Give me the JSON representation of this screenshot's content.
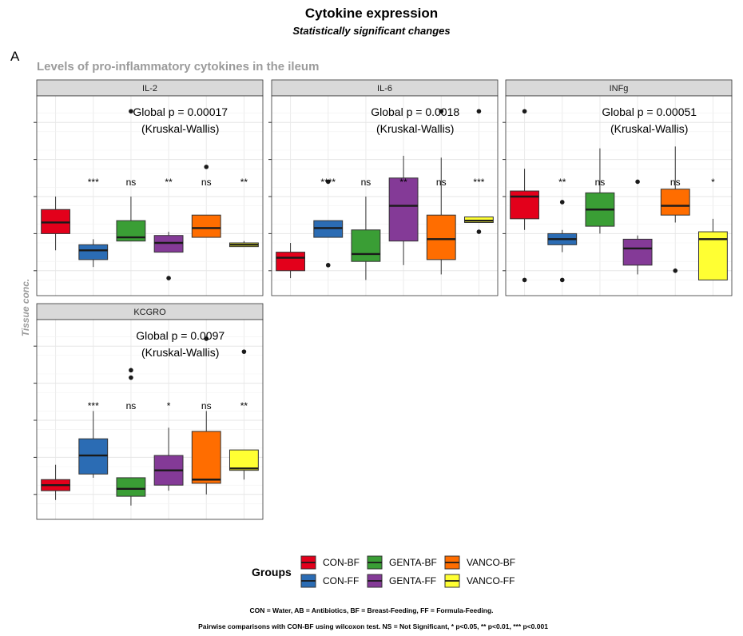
{
  "figure": {
    "title": "Cytokine expression",
    "subtitle": "Statistically significant changes",
    "panel_tag": "A",
    "section_title": "Levels of pro-inflammatory cytokines in the ileum",
    "ylabel": "Tissue conc.",
    "caption_line1": "CON = Water, AB = Antibiotics, BF = Breast-Feeding, FF = Formula-Feeding.",
    "caption_line2": "Pairwise comparisons with CON-BF using wilcoxon test. NS = Not Significant, * p<0.05, ** p<0.01, *** p<0.001"
  },
  "legend": {
    "title": "Groups",
    "placement": "bottom",
    "items": [
      {
        "label": "CON-BF",
        "color": "#e3001b"
      },
      {
        "label": "CON-FF",
        "color": "#2b6cb4"
      },
      {
        "label": "GENTA-BF",
        "color": "#3a9e35"
      },
      {
        "label": "GENTA-FF",
        "color": "#843a97"
      },
      {
        "label": "VANCO-BF",
        "color": "#ff6d00"
      },
      {
        "label": "VANCO-FF",
        "color": "#ffff33"
      }
    ]
  },
  "chart_data": [
    {
      "type": "boxplot",
      "facet": "IL-2",
      "global_test": "Global p = 0.00017",
      "global_method": "(Kruskal-Wallis)",
      "ylim": [
        0,
        100
      ],
      "grid": true,
      "groups": [
        {
          "name": "CON-BF",
          "min": 21,
          "q1": 30,
          "median": 36,
          "q3": 43,
          "max": 50,
          "outliers": [],
          "sig": ""
        },
        {
          "name": "CON-FF",
          "min": 12,
          "q1": 16,
          "median": 21,
          "q3": 24,
          "max": 27,
          "outliers": [],
          "sig": "***"
        },
        {
          "name": "GENTA-BF",
          "min": 26,
          "q1": 26,
          "median": 28,
          "q3": 37,
          "max": 50,
          "outliers": [
            96
          ],
          "sig": "ns"
        },
        {
          "name": "GENTA-FF",
          "min": 20,
          "q1": 20,
          "median": 25,
          "q3": 29,
          "max": 31,
          "outliers": [
            6
          ],
          "sig": "**"
        },
        {
          "name": "VANCO-BF",
          "min": 28,
          "q1": 28,
          "median": 33,
          "q3": 40,
          "max": 40,
          "outliers": [
            66
          ],
          "sig": "ns"
        },
        {
          "name": "VANCO-FF",
          "min": 23,
          "q1": 23,
          "median": 24,
          "q3": 25,
          "max": 26,
          "outliers": [],
          "sig": "**"
        }
      ]
    },
    {
      "type": "boxplot",
      "facet": "IL-6",
      "global_test": "Global p = 0.0018",
      "global_method": "(Kruskal-Wallis)",
      "ylim": [
        0,
        100
      ],
      "grid": true,
      "groups": [
        {
          "name": "CON-BF",
          "min": 6,
          "q1": 10,
          "median": 17,
          "q3": 20,
          "max": 25,
          "outliers": [],
          "sig": ""
        },
        {
          "name": "CON-FF",
          "min": 28,
          "q1": 28,
          "median": 33,
          "q3": 37,
          "max": 37,
          "outliers": [
            13,
            58
          ],
          "sig": "****"
        },
        {
          "name": "GENTA-BF",
          "min": 5,
          "q1": 15,
          "median": 19,
          "q3": 32,
          "max": 50,
          "outliers": [],
          "sig": "ns"
        },
        {
          "name": "GENTA-FF",
          "min": 13,
          "q1": 26,
          "median": 45,
          "q3": 60,
          "max": 72,
          "outliers": [],
          "sig": "**"
        },
        {
          "name": "VANCO-BF",
          "min": 8,
          "q1": 16,
          "median": 27,
          "q3": 40,
          "max": 71,
          "outliers": [
            96
          ],
          "sig": "ns"
        },
        {
          "name": "VANCO-FF",
          "min": 36,
          "q1": 36,
          "median": 37,
          "q3": 39,
          "max": 39,
          "outliers": [
            31,
            96
          ],
          "sig": "***"
        }
      ]
    },
    {
      "type": "boxplot",
      "facet": "INFg",
      "global_test": "Global p = 0.00051",
      "global_method": "(Kruskal-Wallis)",
      "ylim": [
        0,
        100
      ],
      "grid": true,
      "groups": [
        {
          "name": "CON-BF",
          "min": 32,
          "q1": 38,
          "median": 50,
          "q3": 53,
          "max": 65,
          "outliers": [
            5,
            96
          ],
          "sig": ""
        },
        {
          "name": "CON-FF",
          "min": 20,
          "q1": 24,
          "median": 27,
          "q3": 30,
          "max": 32,
          "outliers": [
            5,
            47
          ],
          "sig": "**"
        },
        {
          "name": "GENTA-BF",
          "min": 30,
          "q1": 34,
          "median": 43,
          "q3": 52,
          "max": 76,
          "outliers": [],
          "sig": "ns"
        },
        {
          "name": "GENTA-FF",
          "min": 8,
          "q1": 13,
          "median": 22,
          "q3": 27,
          "max": 29,
          "outliers": [
            58
          ],
          "sig": ""
        },
        {
          "name": "VANCO-BF",
          "min": 36,
          "q1": 40,
          "median": 45,
          "q3": 54,
          "max": 77,
          "outliers": [
            10
          ],
          "sig": "ns"
        },
        {
          "name": "VANCO-FF",
          "min": 5,
          "q1": 5,
          "median": 27,
          "q3": 31,
          "max": 38,
          "outliers": [],
          "sig": "*"
        }
      ]
    },
    {
      "type": "boxplot",
      "facet": "KCGRO",
      "global_test": "Global p = 0.0097",
      "global_method": "(Kruskal-Wallis)",
      "ylim": [
        0,
        100
      ],
      "grid": true,
      "groups": [
        {
          "name": "CON-BF",
          "min": 7,
          "q1": 12,
          "median": 15,
          "q3": 18,
          "max": 26,
          "outliers": [],
          "sig": ""
        },
        {
          "name": "CON-FF",
          "min": 19,
          "q1": 21,
          "median": 31,
          "q3": 40,
          "max": 55,
          "outliers": [],
          "sig": "***"
        },
        {
          "name": "GENTA-BF",
          "min": 4,
          "q1": 9,
          "median": 13,
          "q3": 19,
          "max": 19,
          "outliers": [
            73,
            77
          ],
          "sig": "ns"
        },
        {
          "name": "GENTA-FF",
          "min": 12,
          "q1": 15,
          "median": 23,
          "q3": 31,
          "max": 46,
          "outliers": [],
          "sig": "*"
        },
        {
          "name": "VANCO-BF",
          "min": 10,
          "q1": 16,
          "median": 18,
          "q3": 44,
          "max": 55,
          "outliers": [
            94
          ],
          "sig": "ns"
        },
        {
          "name": "VANCO-FF",
          "min": 18,
          "q1": 23,
          "median": 24,
          "q3": 34,
          "max": 34,
          "outliers": [
            87
          ],
          "sig": "**"
        }
      ]
    }
  ]
}
